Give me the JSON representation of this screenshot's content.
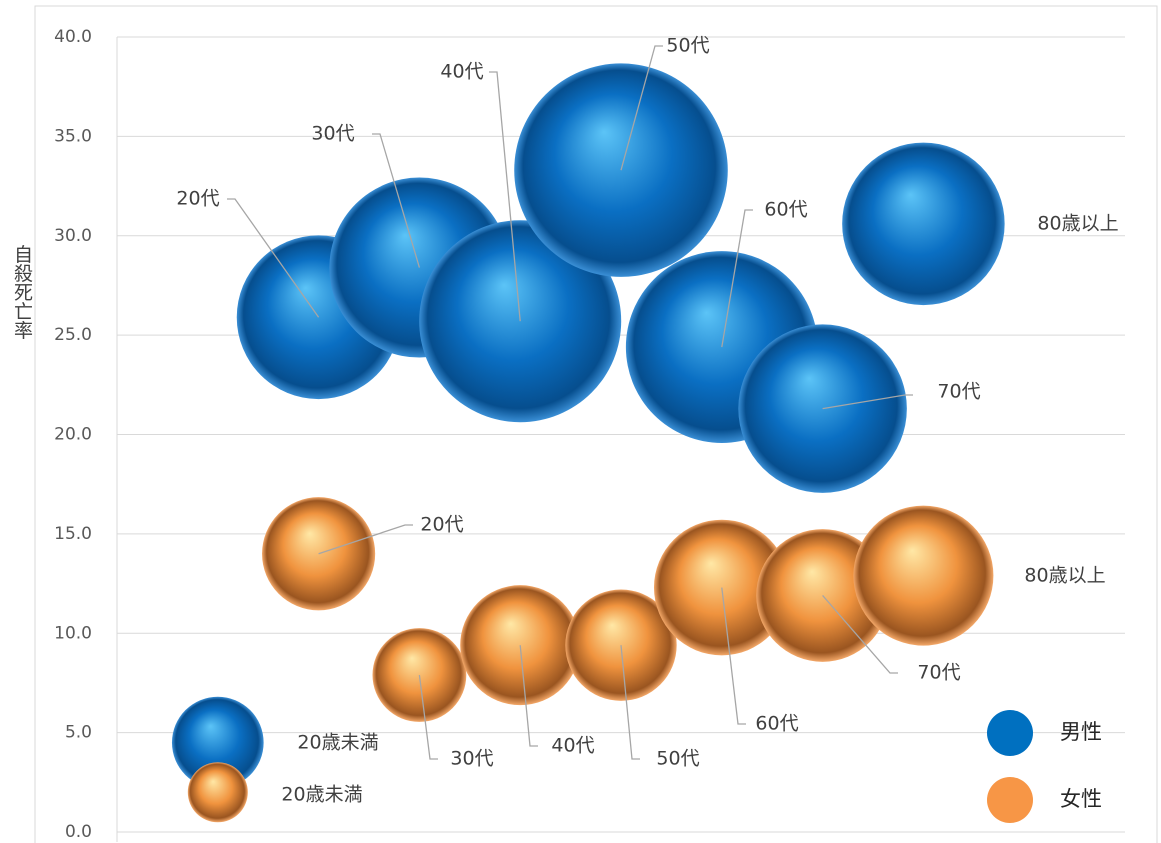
{
  "chart_data": {
    "type": "bubble",
    "y_label": "自殺死亡率",
    "labels": [
      "20歳未満",
      "20代",
      "30代",
      "40代",
      "50代",
      "60代",
      "70代",
      "80歳以上"
    ],
    "x": [
      1,
      2,
      3,
      4,
      5,
      6,
      7,
      8
    ],
    "xlim": [
      0,
      10
    ],
    "ylim": [
      0,
      40
    ],
    "yticks": [
      {
        "value": 0,
        "label": "0.0"
      },
      {
        "value": 5,
        "label": "5.0"
      },
      {
        "value": 10,
        "label": "10.0"
      },
      {
        "value": 15,
        "label": "15.0"
      },
      {
        "value": 20,
        "label": "20.0"
      },
      {
        "value": 25,
        "label": "25.0"
      },
      {
        "value": 30,
        "label": "30.0"
      },
      {
        "value": 35,
        "label": "35.0"
      },
      {
        "value": 40,
        "label": "40.0"
      }
    ],
    "grid": true,
    "legend": "bottom-right",
    "series": [
      {
        "name": "男性",
        "color": "#0070c0",
        "values": [
          4.5,
          25.9,
          28.4,
          25.7,
          33.3,
          24.4,
          21.3,
          30.6
        ],
        "sizes": [
          21,
          67,
          81,
          102,
          114,
          92,
          71,
          66
        ]
      },
      {
        "name": "女性",
        "color": "#f79646",
        "values": [
          2.0,
          14.0,
          7.9,
          9.4,
          9.4,
          12.3,
          11.9,
          12.9
        ],
        "sizes": [
          9,
          32,
          22,
          36,
          31,
          46,
          44,
          49
        ]
      }
    ]
  }
}
